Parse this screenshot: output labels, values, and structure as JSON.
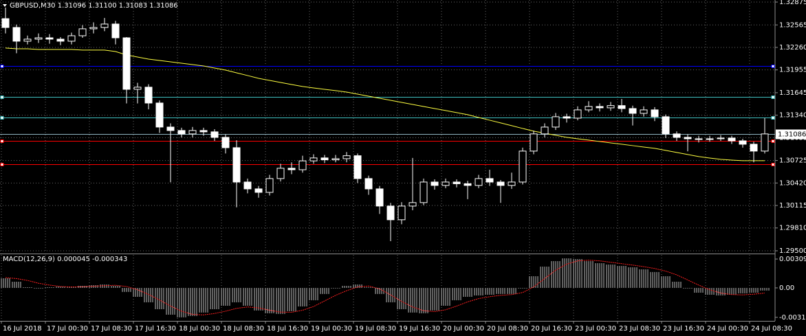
{
  "chart_data": [
    {
      "type": "candlestick",
      "title": "GBPUSD,M30  1.31096 1.31100 1.31083 1.31086",
      "categories": [
        "16 Jul 2018",
        null,
        null,
        null,
        "17 Jul 00:30",
        null,
        null,
        null,
        "17 Jul 08:30",
        null,
        null,
        null,
        "17 Jul 16:30",
        null,
        null,
        null,
        "18 Jul 00:30",
        null,
        null,
        null,
        "18 Jul 08:30",
        null,
        null,
        null,
        "18 Jul 16:30",
        null,
        null,
        null,
        "19 Jul 00:30",
        null,
        null,
        null,
        "19 Jul 08:30",
        null,
        null,
        null,
        "19 Jul 16:30",
        null,
        null,
        null,
        "20 Jul 00:30",
        null,
        null,
        null,
        "20 Jul 08:30",
        null,
        null,
        null,
        "20 Jul 16:30",
        null,
        null,
        null,
        "23 Jul 00:30",
        null,
        null,
        null,
        "23 Jul 08:30",
        null,
        null,
        null,
        "23 Jul 16:30",
        null,
        null,
        null,
        "24 Jul 00:30",
        null,
        null,
        null,
        "24 Jul 08:30",
        null
      ],
      "open": [
        1.3265,
        1.3253,
        1.32344,
        1.32372,
        1.3239,
        1.32372,
        1.32344,
        1.32418,
        1.32512,
        1.3253,
        1.32577,
        1.3239,
        1.31691,
        1.3172,
        1.31505,
        1.31179,
        1.31132,
        1.31086,
        1.31132,
        1.31114,
        1.31039,
        1.30899,
        1.30433,
        1.3034,
        1.30293,
        1.3048,
        1.3062,
        1.306,
        1.3072,
        1.3076,
        1.30735,
        1.3075,
        1.3079,
        1.3048,
        1.3034,
        1.30107,
        1.29921,
        1.30107,
        1.30154,
        1.30433,
        1.30387,
        1.30433,
        1.3041,
        1.30387,
        1.3048,
        1.30433,
        1.30387,
        1.30433,
        1.30853,
        1.31086,
        1.31179,
        1.31319,
        1.313,
        1.31412,
        1.31458,
        1.3144,
        1.3147,
        1.3143,
        1.31365,
        1.31412,
        1.31319,
        1.31086,
        1.31039,
        1.3102,
        1.31011,
        1.3102,
        1.3103,
        1.30992,
        1.30946,
        1.30853
      ],
      "high": [
        1.328,
        1.3257,
        1.3242,
        1.3245,
        1.3244,
        1.324,
        1.3246,
        1.3256,
        1.326,
        1.3266,
        1.3262,
        1.324,
        1.3178,
        1.3176,
        1.3154,
        1.3123,
        1.3117,
        1.3118,
        1.3117,
        1.3115,
        1.3108,
        1.31,
        1.3048,
        1.3038,
        1.3053,
        1.3068,
        1.307,
        1.3079,
        1.3081,
        1.308,
        1.308,
        1.3084,
        1.3082,
        1.3052,
        1.3038,
        1.3015,
        1.3016,
        1.3076,
        1.3048,
        1.3047,
        1.3048,
        1.3047,
        1.3045,
        1.3053,
        1.306,
        1.3046,
        1.3056,
        1.309,
        1.3113,
        1.3123,
        1.3137,
        1.3136,
        1.3146,
        1.3153,
        1.315,
        1.3152,
        1.3156,
        1.3147,
        1.3146,
        1.3145,
        1.3135,
        1.3112,
        1.3108,
        1.3106,
        1.3106,
        1.3107,
        1.3106,
        1.3102,
        1.3098,
        1.313
      ],
      "low": [
        1.3245,
        1.3218,
        1.323,
        1.3232,
        1.3231,
        1.3229,
        1.323,
        1.3239,
        1.3245,
        1.3248,
        1.323,
        1.315,
        1.315,
        1.3142,
        1.311,
        1.3043,
        1.3104,
        1.3104,
        1.3106,
        1.3099,
        1.3082,
        1.3009,
        1.3028,
        1.3022,
        1.3025,
        1.3044,
        1.3054,
        1.3056,
        1.3068,
        1.3069,
        1.307,
        1.307,
        1.3042,
        1.3026,
        1.3,
        1.2963,
        1.2986,
        1.3005,
        1.3012,
        1.3033,
        1.3035,
        1.3036,
        1.302,
        1.3035,
        1.3038,
        1.3015,
        1.3034,
        1.304,
        1.3081,
        1.3104,
        1.3114,
        1.3124,
        1.3127,
        1.3138,
        1.3139,
        1.314,
        1.3138,
        1.312,
        1.3132,
        1.3126,
        1.3103,
        1.3099,
        1.3085,
        1.3097,
        1.3098,
        1.3099,
        1.3095,
        1.309,
        1.307,
        1.3082
      ],
      "close": [
        1.3253,
        1.32344,
        1.32372,
        1.3239,
        1.32372,
        1.32344,
        1.32418,
        1.32512,
        1.3253,
        1.32577,
        1.3239,
        1.31691,
        1.3172,
        1.31505,
        1.31179,
        1.31132,
        1.31086,
        1.31132,
        1.31114,
        1.31039,
        1.30899,
        1.30433,
        1.3034,
        1.30293,
        1.3048,
        1.3062,
        1.306,
        1.3072,
        1.3076,
        1.30735,
        1.3075,
        1.3079,
        1.3048,
        1.3034,
        1.30107,
        1.29921,
        1.30107,
        1.30154,
        1.30433,
        1.30387,
        1.30433,
        1.3041,
        1.30387,
        1.3048,
        1.30433,
        1.30387,
        1.30433,
        1.30853,
        1.31086,
        1.31179,
        1.31319,
        1.313,
        1.31412,
        1.31458,
        1.3144,
        1.3147,
        1.3143,
        1.31365,
        1.31412,
        1.31319,
        1.31086,
        1.31039,
        1.3102,
        1.31011,
        1.3102,
        1.3103,
        1.30992,
        1.30946,
        1.30853,
        1.31086
      ],
      "up_color": "#000000",
      "down_color": "#ffffff",
      "wick_color": "#ffffff",
      "ma": {
        "color": "#ffff40",
        "values": [
          1.32251,
          1.32241,
          1.32241,
          1.32232,
          1.32232,
          1.32232,
          1.32232,
          1.32223,
          1.32223,
          1.32223,
          1.32204,
          1.32157,
          1.32129,
          1.32101,
          1.32083,
          1.32064,
          1.32045,
          1.32027,
          1.32008,
          1.3198,
          1.31952,
          1.31915,
          1.31878,
          1.3184,
          1.31812,
          1.31784,
          1.31756,
          1.31729,
          1.3171,
          1.31691,
          1.31673,
          1.31654,
          1.31626,
          1.31598,
          1.3157,
          1.31542,
          1.31514,
          1.31486,
          1.31458,
          1.3143,
          1.31403,
          1.31375,
          1.31347,
          1.31309,
          1.31272,
          1.31235,
          1.31198,
          1.3116,
          1.31123,
          1.31095,
          1.31067,
          1.31039,
          1.3102,
          1.31002,
          1.30983,
          1.30964,
          1.30946,
          1.30927,
          1.30908,
          1.3089,
          1.30862,
          1.30834,
          1.30806,
          1.30778,
          1.30759,
          1.30741,
          1.30731,
          1.30722,
          1.30722,
          1.30722
        ]
      },
      "levels": [
        {
          "value": 1.32008,
          "color": "#0000ff"
        },
        {
          "value": 1.31589,
          "color": "#40c0c0"
        },
        {
          "value": 1.31309,
          "color": "#40c0c0"
        },
        {
          "value": 1.30992,
          "color": "#ff0000"
        },
        {
          "value": 1.30675,
          "color": "#ff0000"
        }
      ],
      "last_price": {
        "value": 1.31086,
        "color": "#8fb4c0"
      },
      "ylim": [
        1.29472,
        1.32903
      ],
      "yticks": [
        1.32875,
        1.32565,
        {
          "value": 1.3226,
          "label": "1.32260"
        },
        1.31955,
        1.31645,
        {
          "value": 1.3134,
          "label": "1.31340"
        },
        1.31035,
        1.30725,
        {
          "value": 1.3042,
          "label": "1.30420"
        },
        1.30115,
        {
          "value": 1.2981,
          "label": "1.29810"
        },
        {
          "value": 1.295,
          "label": "1.29500"
        }
      ],
      "grid": true
    },
    {
      "type": "macd",
      "title": "MACD(12,26,9) 0.000045 -0.000343",
      "histogram": [
        0.00103,
        0.00066,
        7e-05,
        -7e-05,
        7e-05,
        0.00015,
        0.00015,
        0.00022,
        0.00029,
        0.00037,
        0.00022,
        -0.00044,
        -0.00096,
        -0.00155,
        -0.00229,
        -0.00288,
        -0.00317,
        -0.00302,
        -0.00265,
        -0.00229,
        -0.00192,
        -0.00155,
        -0.00192,
        -0.00243,
        -0.00273,
        -0.0028,
        -0.00251,
        -0.00199,
        -0.00133,
        -0.00066,
        -7e-05,
        0.00022,
        0.00037,
        7e-05,
        -0.00066,
        -0.00155,
        -0.00229,
        -0.00265,
        -0.00273,
        -0.00243,
        -0.00192,
        -0.00133,
        -0.00096,
        -0.00081,
        -0.00074,
        -0.00066,
        -0.00066,
        -7e-05,
        0.00125,
        0.00229,
        0.00288,
        0.00317,
        0.0031,
        0.00288,
        0.00265,
        0.00251,
        0.00236,
        0.00221,
        0.00199,
        0.0017,
        0.00125,
        0.00066,
        -7e-05,
        -0.00052,
        -0.00074,
        -0.00081,
        -0.00074,
        -0.00059,
        -0.00052,
        -0.00029
      ],
      "signal": [
        0.0011,
        0.001,
        0.0008,
        0.0005,
        0.0003,
        0.00015,
        0.0001,
        0.00012,
        0.00018,
        0.00024,
        0.00028,
        0.00015,
        -0.0002,
        -0.0007,
        -0.0013,
        -0.00195,
        -0.0025,
        -0.00285,
        -0.0029,
        -0.00275,
        -0.0025,
        -0.0022,
        -0.00205,
        -0.00215,
        -0.0024,
        -0.0026,
        -0.00262,
        -0.0024,
        -0.002,
        -0.0014,
        -0.0008,
        -0.0003,
        0.0001,
        0.0002,
        -0.0001,
        -0.00075,
        -0.00145,
        -0.00205,
        -0.00245,
        -0.00255,
        -0.00235,
        -0.00195,
        -0.0015,
        -0.00115,
        -0.00095,
        -0.0008,
        -0.00072,
        -0.0005,
        0.0001,
        0.001,
        0.0019,
        0.00255,
        0.0029,
        0.00298,
        0.0029,
        0.00275,
        0.0026,
        0.00245,
        0.00228,
        0.00208,
        0.0018,
        0.0014,
        0.00085,
        0.0003,
        -0.0002,
        -0.00055,
        -0.00072,
        -0.00075,
        -0.00068,
        -0.00055
      ],
      "hist_color": "#c0c0c0",
      "signal_color": "#ff2020",
      "ylim": [
        -0.00347,
        0.00354
      ],
      "yticks": [
        0.003097,
        {
          "value": 0,
          "label": "0.00"
        },
        -0.003159
      ]
    }
  ]
}
